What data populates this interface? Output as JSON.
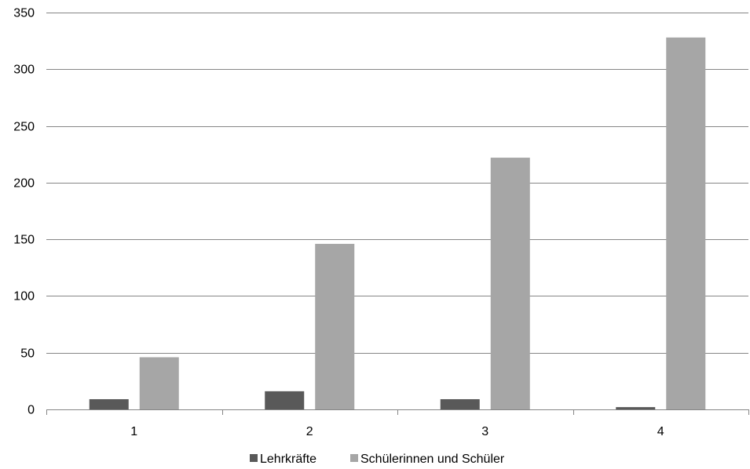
{
  "chart_data": {
    "type": "bar",
    "categories": [
      "1",
      "2",
      "3",
      "4"
    ],
    "series": [
      {
        "name": "Lehrkräfte",
        "values": [
          9,
          16,
          9,
          2
        ],
        "color": "#595959"
      },
      {
        "name": "Schülerinnen und Schüler",
        "values": [
          46,
          146,
          222,
          328
        ],
        "color": "#a6a6a6"
      }
    ],
    "ylim": [
      0,
      350
    ],
    "yticks": [
      0,
      50,
      100,
      150,
      200,
      250,
      300,
      350
    ],
    "grid": true,
    "legend_position": "bottom",
    "axis_color": "#868686",
    "grid_color": "#868686"
  }
}
